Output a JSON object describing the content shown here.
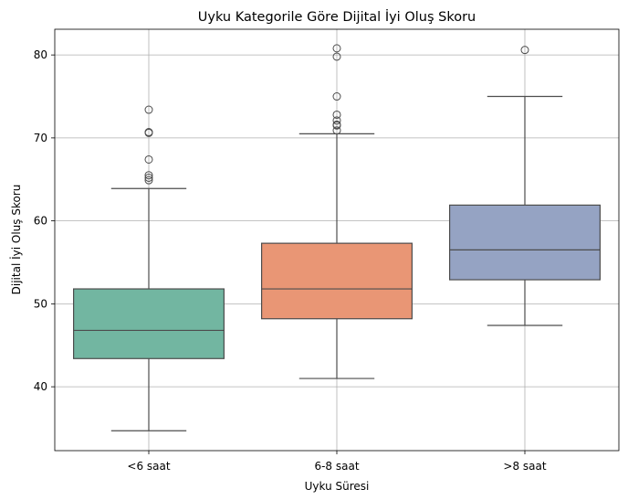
{
  "chart_data": {
    "type": "box",
    "title": "Uyku Kategorile Göre Dijital İyi Oluş Skoru",
    "xlabel": "Uyku Süresi",
    "ylabel": "Dijital İyi Oluş Skoru",
    "ylim": [
      32.3,
      83.1
    ],
    "yticks": [
      40,
      50,
      60,
      70,
      80
    ],
    "grid": true,
    "categories": [
      "<6 saat",
      "6-8 saat",
      ">8 saat"
    ],
    "boxes": [
      {
        "category": "<6 saat",
        "color": "#72b6a1",
        "whisker_low": 34.7,
        "q1": 43.4,
        "median": 46.8,
        "q3": 51.8,
        "whisker_high": 63.9,
        "outliers": [
          64.9,
          65.2,
          65.5,
          67.4,
          70.6,
          70.7,
          73.4
        ]
      },
      {
        "category": "6-8 saat",
        "color": "#e99675",
        "whisker_low": 41.0,
        "q1": 48.2,
        "median": 51.8,
        "q3": 57.3,
        "whisker_high": 70.5,
        "outliers": [
          70.9,
          71.5,
          71.6,
          72.1,
          72.8,
          75.0,
          79.8,
          80.8
        ]
      },
      {
        "category": ">8 saat",
        "color": "#95a3c3",
        "whisker_low": 47.4,
        "q1": 52.9,
        "median": 56.5,
        "q3": 61.9,
        "whisker_high": 75.0,
        "outliers": [
          80.6
        ]
      }
    ]
  }
}
